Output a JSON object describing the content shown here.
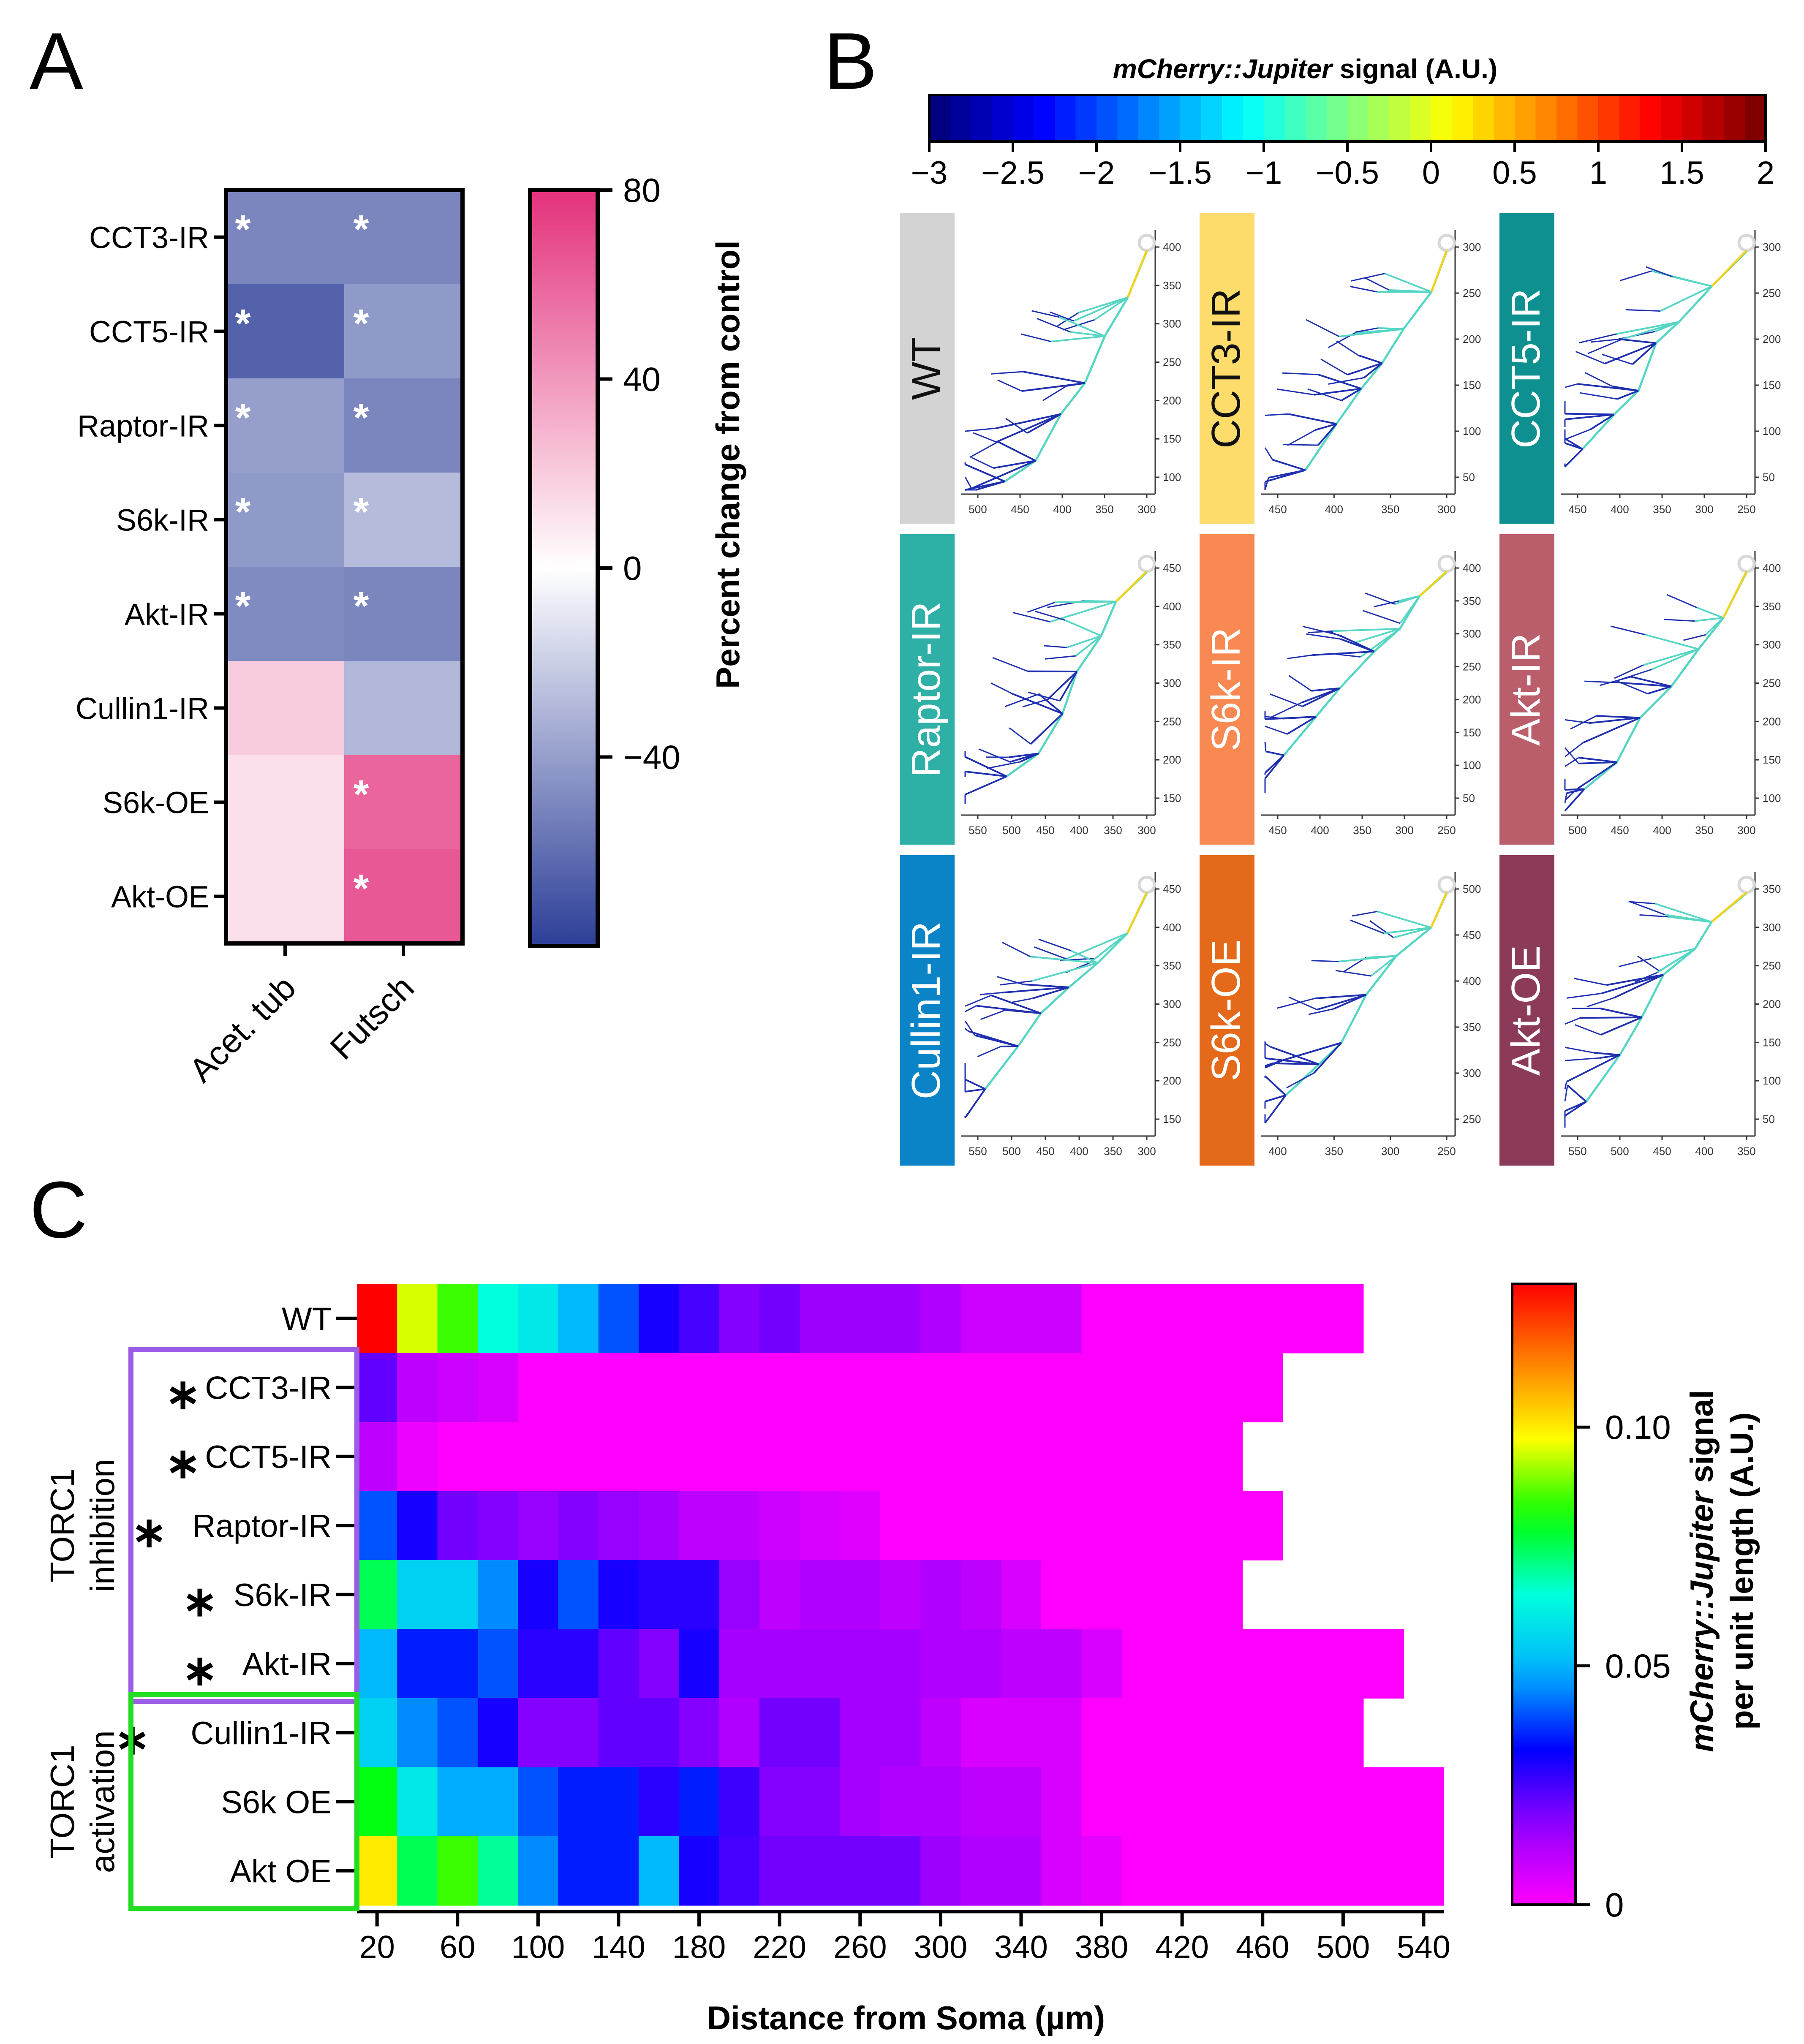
{
  "panel_labels": {
    "a": "A",
    "b": "B",
    "c": "C"
  },
  "colors": {
    "heatA_neg": "#2c3e98",
    "heatA_mid": "#ffffff",
    "heatA_pos": "#e3317b",
    "jet_low": "#00008f",
    "jet_high": "#7f0000",
    "torc_inhibition_box": "#9b5de5",
    "torc_activation_box": "#22dd22",
    "dendrite_main": "#55d6c4",
    "dendrite_fine": "#1e2fb0",
    "soma": "#d8d8d8"
  },
  "chart_data": [
    {
      "type": "heatmap",
      "panel": "A",
      "rows": [
        "CCT3-IR",
        "CCT5-IR",
        "Raptor-IR",
        "S6k-IR",
        "Akt-IR",
        "Cullin1-IR",
        "S6k-OE",
        "Akt-OE"
      ],
      "columns": [
        "Acet. tub",
        "Futsch"
      ],
      "values": [
        [
          -50,
          -50
        ],
        [
          -65,
          -42
        ],
        [
          -40,
          -50
        ],
        [
          -42,
          -28
        ],
        [
          -48,
          -50
        ],
        [
          20,
          -30
        ],
        [
          12,
          60
        ],
        [
          12,
          65
        ]
      ],
      "significant": [
        [
          true,
          true
        ],
        [
          true,
          true
        ],
        [
          true,
          true
        ],
        [
          true,
          true
        ],
        [
          true,
          true
        ],
        [
          false,
          false
        ],
        [
          false,
          true
        ],
        [
          false,
          true
        ]
      ],
      "star_symbol": "*",
      "colorbar": {
        "label": "Percent change from control",
        "ticks": [
          80,
          40,
          0,
          -40
        ],
        "tick_labels": [
          "80",
          "40",
          "0",
          "−40"
        ],
        "range": [
          -80,
          80
        ]
      }
    },
    {
      "type": "other",
      "panel": "B",
      "title_italic": "mCherry::Jupiter",
      "title_rest": " signal (A.U.)",
      "colorbar": {
        "range": [
          -3,
          2
        ],
        "ticks": [
          -3,
          -2.5,
          -2,
          -1.5,
          -1,
          -0.5,
          0,
          0.5,
          1,
          1.5,
          2
        ],
        "tick_labels": [
          "−3",
          "−2.5",
          "−2",
          "−1.5",
          "−1",
          "−0.5",
          "0",
          "0.5",
          "1",
          "1.5",
          "2"
        ]
      },
      "tiles": [
        {
          "label": "WT",
          "color": "#d3d3d3",
          "text_color": "#111111",
          "x_ticks": [
            "500",
            "450",
            "400",
            "350",
            "300"
          ],
          "y_ticks": [
            "400",
            "350",
            "300",
            "250",
            "200",
            "150",
            "100"
          ]
        },
        {
          "label": "CCT3-IR",
          "color": "#fddc6c",
          "text_color": "#111111",
          "x_ticks": [
            "450",
            "400",
            "350",
            "300"
          ],
          "y_ticks": [
            "300",
            "250",
            "200",
            "150",
            "100",
            "50"
          ]
        },
        {
          "label": "CCT5-IR",
          "color": "#0e9090",
          "text_color": "#ffffff",
          "x_ticks": [
            "450",
            "400",
            "350",
            "300",
            "250"
          ],
          "y_ticks": [
            "300",
            "250",
            "200",
            "150",
            "100",
            "50"
          ]
        },
        {
          "label": "Raptor-IR",
          "color": "#2eb0a6",
          "text_color": "#ffffff",
          "x_ticks": [
            "550",
            "500",
            "450",
            "400",
            "350",
            "300"
          ],
          "y_ticks": [
            "450",
            "400",
            "350",
            "300",
            "250",
            "200",
            "150"
          ]
        },
        {
          "label": "S6k-IR",
          "color": "#f98952",
          "text_color": "#ffffff",
          "x_ticks": [
            "450",
            "400",
            "350",
            "300",
            "250"
          ],
          "y_ticks": [
            "400",
            "350",
            "300",
            "250",
            "200",
            "150",
            "100",
            "50"
          ]
        },
        {
          "label": "Akt-IR",
          "color": "#b95e6a",
          "text_color": "#ffffff",
          "x_ticks": [
            "500",
            "450",
            "400",
            "350",
            "300"
          ],
          "y_ticks": [
            "400",
            "350",
            "300",
            "250",
            "200",
            "150",
            "100"
          ]
        },
        {
          "label": "Cullin1-IR",
          "color": "#0a84c6",
          "text_color": "#ffffff",
          "x_ticks": [
            "550",
            "500",
            "450",
            "400",
            "350",
            "300"
          ],
          "y_ticks": [
            "450",
            "400",
            "350",
            "300",
            "250",
            "200",
            "150"
          ]
        },
        {
          "label": "S6k-OE",
          "color": "#e4691a",
          "text_color": "#ffffff",
          "x_ticks": [
            "400",
            "350",
            "300",
            "250"
          ],
          "y_ticks": [
            "500",
            "450",
            "400",
            "350",
            "300",
            "250"
          ]
        },
        {
          "label": "Akt-OE",
          "color": "#8b3a5a",
          "text_color": "#ffffff",
          "x_ticks": [
            "550",
            "500",
            "450",
            "400",
            "350"
          ],
          "y_ticks": [
            "350",
            "300",
            "250",
            "200",
            "150",
            "100",
            "50"
          ]
        }
      ]
    },
    {
      "type": "heatmap",
      "panel": "C",
      "rows": [
        "WT",
        "CCT3-IR",
        "CCT5-IR",
        "Raptor-IR",
        "S6k-IR",
        "Akt-IR",
        "Cullin1-IR",
        "S6k OE",
        "Akt OE"
      ],
      "row_star": [
        false,
        true,
        true,
        true,
        true,
        true,
        true,
        false,
        false
      ],
      "star_symbol": "∗",
      "x": [
        20,
        40,
        60,
        80,
        100,
        120,
        140,
        160,
        180,
        200,
        220,
        240,
        260,
        280,
        300,
        320,
        340,
        360,
        380,
        400,
        420,
        440,
        460,
        480,
        500,
        520,
        540
      ],
      "x_ticks": [
        20,
        60,
        100,
        140,
        180,
        220,
        260,
        300,
        340,
        380,
        420,
        460,
        500,
        540
      ],
      "xlabel": "Distance from Soma (µm)",
      "values": [
        [
          0.13,
          0.095,
          0.085,
          0.065,
          0.06,
          0.05,
          0.04,
          0.03,
          0.025,
          0.018,
          0.02,
          0.015,
          0.015,
          0.015,
          0.012,
          0.008,
          0.008,
          0.008,
          0,
          0,
          0,
          0,
          0,
          0,
          0,
          null,
          null
        ],
        [
          0.022,
          0.01,
          0.008,
          0.006,
          0,
          0,
          0,
          0,
          0,
          0,
          0,
          0,
          0,
          0,
          0,
          0,
          0,
          0,
          0,
          0,
          0,
          0,
          0,
          null,
          null,
          null,
          null
        ],
        [
          0.01,
          0.003,
          0,
          0,
          0,
          0,
          0,
          0,
          0,
          0,
          0,
          0,
          0,
          0,
          0,
          0,
          0,
          0,
          0,
          0,
          0,
          0,
          null,
          null,
          null,
          null,
          null
        ],
        [
          0.04,
          0.03,
          0.02,
          0.018,
          0.016,
          0.018,
          0.016,
          0.014,
          0.01,
          0.01,
          0.008,
          0.006,
          0.005,
          0,
          0,
          0,
          0,
          0,
          0,
          0,
          0,
          0,
          0,
          null,
          null,
          null,
          null
        ],
        [
          0.075,
          0.055,
          0.055,
          0.045,
          0.03,
          0.04,
          0.03,
          0.028,
          0.028,
          0.016,
          0.01,
          0.012,
          0.012,
          0.01,
          0.012,
          0.01,
          0.006,
          0,
          0,
          0,
          0,
          0,
          null,
          null,
          null,
          null,
          null
        ],
        [
          0.05,
          0.035,
          0.035,
          0.04,
          0.028,
          0.028,
          0.022,
          0.018,
          0.03,
          0.014,
          0.014,
          0.014,
          0.014,
          0.014,
          0.012,
          0.012,
          0.01,
          0.01,
          0.006,
          0,
          0,
          0,
          0,
          0,
          0,
          0,
          null
        ],
        [
          0.055,
          0.045,
          0.04,
          0.03,
          0.018,
          0.018,
          0.022,
          0.022,
          0.018,
          0.012,
          0.02,
          0.02,
          0.014,
          0.014,
          0.01,
          0.006,
          0.006,
          0.006,
          0,
          0,
          0,
          0,
          0,
          0,
          0,
          null,
          null
        ],
        [
          0.08,
          0.06,
          0.048,
          0.048,
          0.04,
          0.035,
          0.035,
          0.028,
          0.035,
          0.026,
          0.018,
          0.018,
          0.014,
          0.012,
          0.012,
          0.01,
          0.01,
          0.006,
          0,
          0,
          0,
          0,
          0,
          0,
          0,
          0,
          0
        ],
        [
          0.1,
          0.075,
          0.085,
          0.07,
          0.045,
          0.035,
          0.035,
          0.05,
          0.03,
          0.025,
          0.02,
          0.02,
          0.02,
          0.02,
          0.015,
          0.012,
          0.012,
          0.006,
          0.004,
          0,
          0,
          0,
          0,
          0,
          0,
          0,
          0
        ]
      ],
      "groups": [
        {
          "label_line1": "TORC1",
          "label_line2": "inhibition",
          "rows": [
            1,
            5
          ]
        },
        {
          "label_line1": "TORC1",
          "label_line2": "activation",
          "rows": [
            6,
            8
          ]
        }
      ],
      "colorbar": {
        "label_line1_italic": "mCherry::Jupiter",
        "label_line1_rest": " signal",
        "label_line2": "per unit length  (A.U.)",
        "range": [
          0,
          0.13
        ],
        "ticks": [
          0.1,
          0.05,
          0
        ],
        "tick_labels": [
          "0.10",
          "0.05",
          "0"
        ]
      }
    }
  ]
}
